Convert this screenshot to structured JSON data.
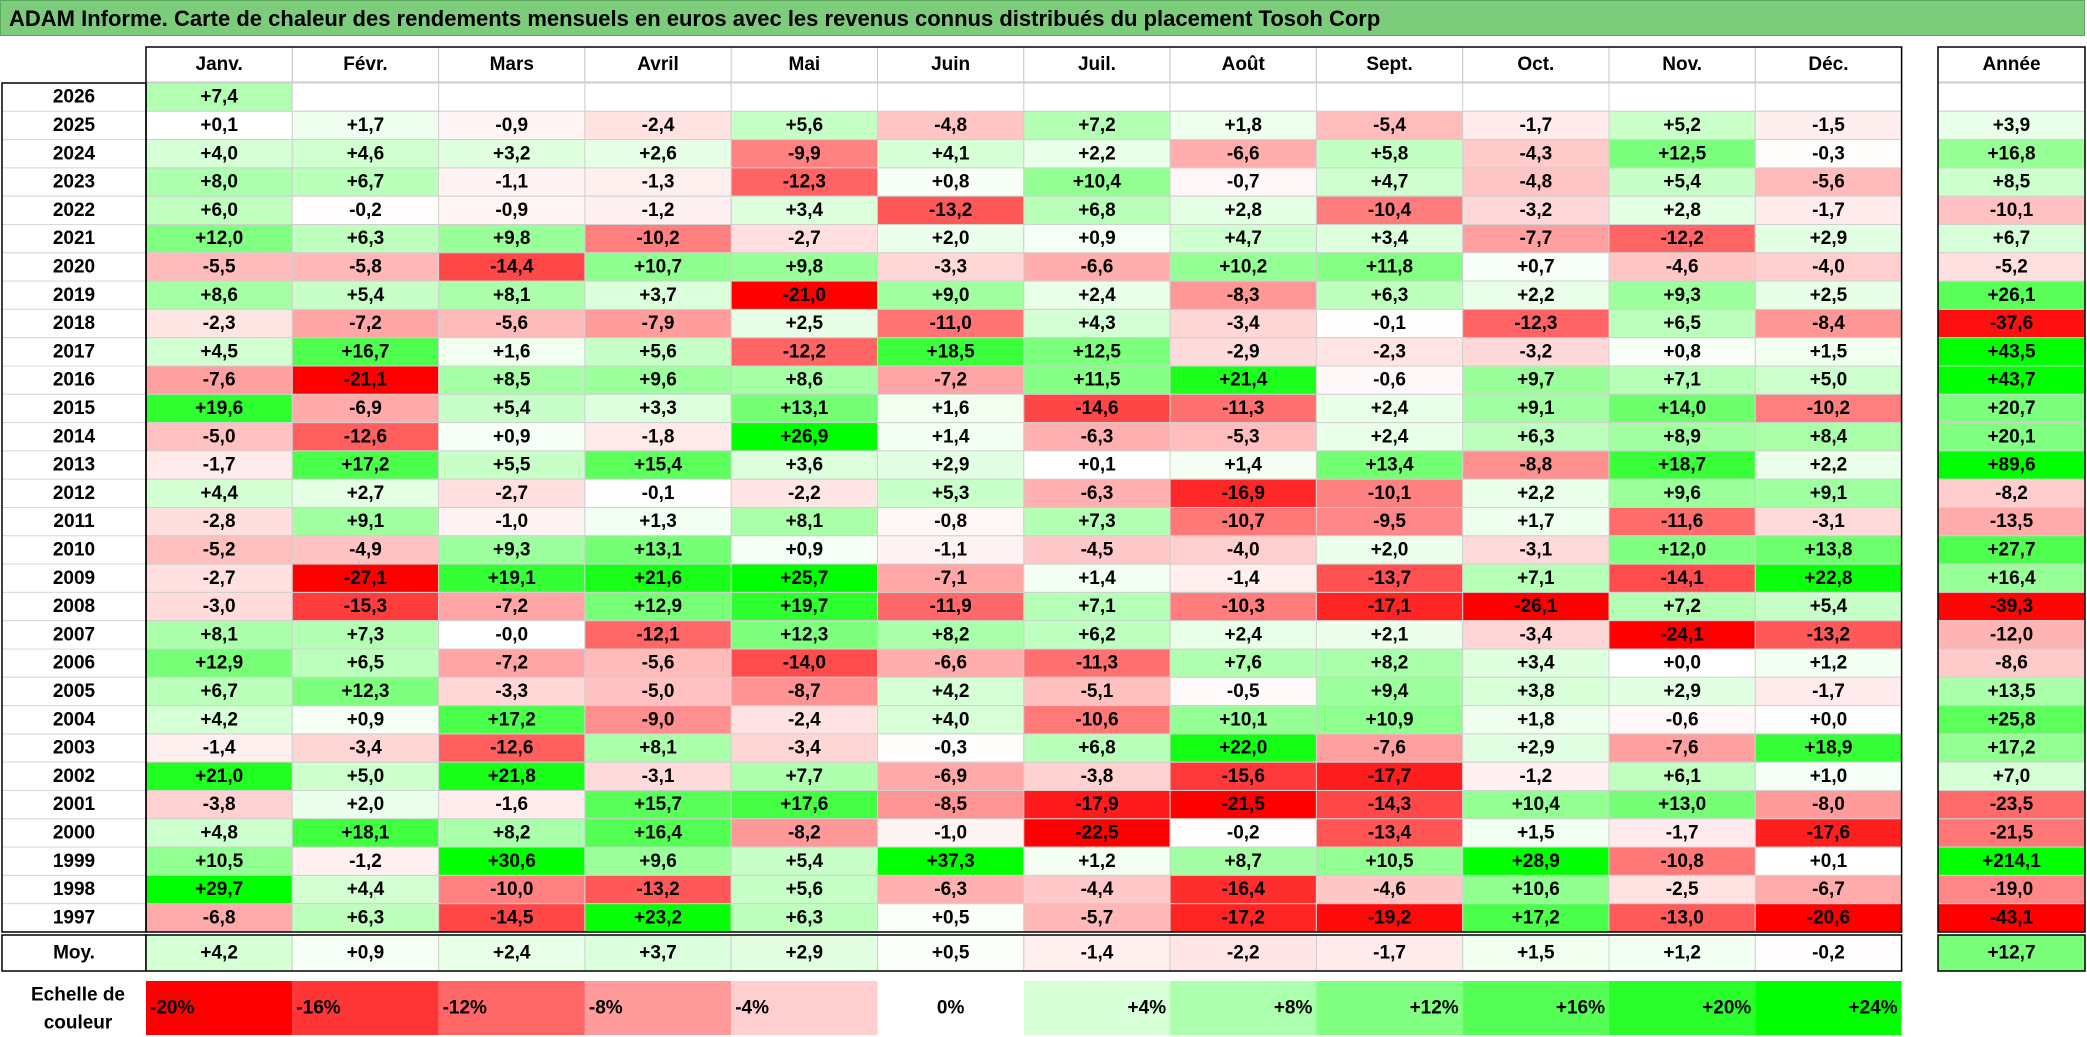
{
  "title": "ADAM Informe. Carte de chaleur des rendements mensuels en euros avec les revenus connus distribués du placement Tosoh Corp",
  "chart_data": {
    "type": "heatmap",
    "months": [
      "Janv.",
      "Févr.",
      "Mars",
      "Avril",
      "Mai",
      "Juin",
      "Juil.",
      "Août",
      "Sept.",
      "Oct.",
      "Nov.",
      "Déc."
    ],
    "year_header": "Année",
    "rows": [
      {
        "year": "2026",
        "values": [
          "+7,4",
          "",
          "",
          "",
          "",
          "",
          "",
          "",
          "",
          "",
          "",
          ""
        ],
        "annual": ""
      },
      {
        "year": "2025",
        "values": [
          "+0,1",
          "+1,7",
          "-0,9",
          "-2,4",
          "+5,6",
          "-4,8",
          "+7,2",
          "+1,8",
          "-5,4",
          "-1,7",
          "+5,2",
          "-1,5"
        ],
        "annual": "+3,9"
      },
      {
        "year": "2024",
        "values": [
          "+4,0",
          "+4,6",
          "+3,2",
          "+2,6",
          "-9,9",
          "+4,1",
          "+2,2",
          "-6,6",
          "+5,8",
          "-4,3",
          "+12,5",
          "-0,3"
        ],
        "annual": "+16,8"
      },
      {
        "year": "2023",
        "values": [
          "+8,0",
          "+6,7",
          "-1,1",
          "-1,3",
          "-12,3",
          "+0,8",
          "+10,4",
          "-0,7",
          "+4,7",
          "-4,8",
          "+5,4",
          "-5,6"
        ],
        "annual": "+8,5"
      },
      {
        "year": "2022",
        "values": [
          "+6,0",
          "-0,2",
          "-0,9",
          "-1,2",
          "+3,4",
          "-13,2",
          "+6,8",
          "+2,8",
          "-10,4",
          "-3,2",
          "+2,8",
          "-1,7"
        ],
        "annual": "-10,1"
      },
      {
        "year": "2021",
        "values": [
          "+12,0",
          "+6,3",
          "+9,8",
          "-10,2",
          "-2,7",
          "+2,0",
          "+0,9",
          "+4,7",
          "+3,4",
          "-7,7",
          "-12,2",
          "+2,9"
        ],
        "annual": "+6,7"
      },
      {
        "year": "2020",
        "values": [
          "-5,5",
          "-5,8",
          "-14,4",
          "+10,7",
          "+9,8",
          "-3,3",
          "-6,6",
          "+10,2",
          "+11,8",
          "+0,7",
          "-4,6",
          "-4,0"
        ],
        "annual": "-5,2"
      },
      {
        "year": "2019",
        "values": [
          "+8,6",
          "+5,4",
          "+8,1",
          "+3,7",
          "-21,0",
          "+9,0",
          "+2,4",
          "-8,3",
          "+6,3",
          "+2,2",
          "+9,3",
          "+2,5"
        ],
        "annual": "+26,1"
      },
      {
        "year": "2018",
        "values": [
          "-2,3",
          "-7,2",
          "-5,6",
          "-7,9",
          "+2,5",
          "-11,0",
          "+4,3",
          "-3,4",
          "-0,1",
          "-12,3",
          "+6,5",
          "-8,4"
        ],
        "annual": "-37,6"
      },
      {
        "year": "2017",
        "values": [
          "+4,5",
          "+16,7",
          "+1,6",
          "+5,6",
          "-12,2",
          "+18,5",
          "+12,5",
          "-2,9",
          "-2,3",
          "-3,2",
          "+0,8",
          "+1,5"
        ],
        "annual": "+43,5"
      },
      {
        "year": "2016",
        "values": [
          "-7,6",
          "-21,1",
          "+8,5",
          "+9,6",
          "+8,6",
          "-7,2",
          "+11,5",
          "+21,4",
          "-0,6",
          "+9,7",
          "+7,1",
          "+5,0"
        ],
        "annual": "+43,7"
      },
      {
        "year": "2015",
        "values": [
          "+19,6",
          "-6,9",
          "+5,4",
          "+3,3",
          "+13,1",
          "+1,6",
          "-14,6",
          "-11,3",
          "+2,4",
          "+9,1",
          "+14,0",
          "-10,2"
        ],
        "annual": "+20,7"
      },
      {
        "year": "2014",
        "values": [
          "-5,0",
          "-12,6",
          "+0,9",
          "-1,8",
          "+26,9",
          "+1,4",
          "-6,3",
          "-5,3",
          "+2,4",
          "+6,3",
          "+8,9",
          "+8,4"
        ],
        "annual": "+20,1"
      },
      {
        "year": "2013",
        "values": [
          "-1,7",
          "+17,2",
          "+5,5",
          "+15,4",
          "+3,6",
          "+2,9",
          "+0,1",
          "+1,4",
          "+13,4",
          "-8,8",
          "+18,7",
          "+2,2"
        ],
        "annual": "+89,6"
      },
      {
        "year": "2012",
        "values": [
          "+4,4",
          "+2,7",
          "-2,7",
          "-0,1",
          "-2,2",
          "+5,3",
          "-6,3",
          "-16,9",
          "-10,1",
          "+2,2",
          "+9,6",
          "+9,1"
        ],
        "annual": "-8,2"
      },
      {
        "year": "2011",
        "values": [
          "-2,8",
          "+9,1",
          "-1,0",
          "+1,3",
          "+8,1",
          "-0,8",
          "+7,3",
          "-10,7",
          "-9,5",
          "+1,7",
          "-11,6",
          "-3,1"
        ],
        "annual": "-13,5"
      },
      {
        "year": "2010",
        "values": [
          "-5,2",
          "-4,9",
          "+9,3",
          "+13,1",
          "+0,9",
          "-1,1",
          "-4,5",
          "-4,0",
          "+2,0",
          "-3,1",
          "+12,0",
          "+13,8"
        ],
        "annual": "+27,7"
      },
      {
        "year": "2009",
        "values": [
          "-2,7",
          "-27,1",
          "+19,1",
          "+21,6",
          "+25,7",
          "-7,1",
          "+1,4",
          "-1,4",
          "-13,7",
          "+7,1",
          "-14,1",
          "+22,8"
        ],
        "annual": "+16,4"
      },
      {
        "year": "2008",
        "values": [
          "-3,0",
          "-15,3",
          "-7,2",
          "+12,9",
          "+19,7",
          "-11,9",
          "+7,1",
          "-10,3",
          "-17,1",
          "-26,1",
          "+7,2",
          "+5,4"
        ],
        "annual": "-39,3"
      },
      {
        "year": "2007",
        "values": [
          "+8,1",
          "+7,3",
          "-0,0",
          "-12,1",
          "+12,3",
          "+8,2",
          "+6,2",
          "+2,4",
          "+2,1",
          "-3,4",
          "-24,1",
          "-13,2"
        ],
        "annual": "-12,0"
      },
      {
        "year": "2006",
        "values": [
          "+12,9",
          "+6,5",
          "-7,2",
          "-5,6",
          "-14,0",
          "-6,6",
          "-11,3",
          "+7,6",
          "+8,2",
          "+3,4",
          "+0,0",
          "+1,2"
        ],
        "annual": "-8,6"
      },
      {
        "year": "2005",
        "values": [
          "+6,7",
          "+12,3",
          "-3,3",
          "-5,0",
          "-8,7",
          "+4,2",
          "-5,1",
          "-0,5",
          "+9,4",
          "+3,8",
          "+2,9",
          "-1,7"
        ],
        "annual": "+13,5"
      },
      {
        "year": "2004",
        "values": [
          "+4,2",
          "+0,9",
          "+17,2",
          "-9,0",
          "-2,4",
          "+4,0",
          "-10,6",
          "+10,1",
          "+10,9",
          "+1,8",
          "-0,6",
          "+0,0"
        ],
        "annual": "+25,8"
      },
      {
        "year": "2003",
        "values": [
          "-1,4",
          "-3,4",
          "-12,6",
          "+8,1",
          "-3,4",
          "-0,3",
          "+6,8",
          "+22,0",
          "-7,6",
          "+2,9",
          "-7,6",
          "+18,9"
        ],
        "annual": "+17,2"
      },
      {
        "year": "2002",
        "values": [
          "+21,0",
          "+5,0",
          "+21,8",
          "-3,1",
          "+7,7",
          "-6,9",
          "-3,8",
          "-15,6",
          "-17,7",
          "-1,2",
          "+6,1",
          "+1,0"
        ],
        "annual": "+7,0"
      },
      {
        "year": "2001",
        "values": [
          "-3,8",
          "+2,0",
          "-1,6",
          "+15,7",
          "+17,6",
          "-8,5",
          "-17,9",
          "-21,5",
          "-14,3",
          "+10,4",
          "+13,0",
          "-8,0"
        ],
        "annual": "-23,5"
      },
      {
        "year": "2000",
        "values": [
          "+4,8",
          "+18,1",
          "+8,2",
          "+16,4",
          "-8,2",
          "-1,0",
          "-22,5",
          "-0,2",
          "-13,4",
          "+1,5",
          "-1,7",
          "-17,6"
        ],
        "annual": "-21,5"
      },
      {
        "year": "1999",
        "values": [
          "+10,5",
          "-1,2",
          "+30,6",
          "+9,6",
          "+5,4",
          "+37,3",
          "+1,2",
          "+8,7",
          "+10,5",
          "+28,9",
          "-10,8",
          "+0,1"
        ],
        "annual": "+214,1"
      },
      {
        "year": "1998",
        "values": [
          "+29,7",
          "+4,4",
          "-10,0",
          "-13,2",
          "+5,6",
          "-6,3",
          "-4,4",
          "-16,4",
          "-4,6",
          "+10,6",
          "-2,5",
          "-6,7"
        ],
        "annual": "-19,0"
      },
      {
        "year": "1997",
        "values": [
          "-6,8",
          "+6,3",
          "-14,5",
          "+23,2",
          "+6,3",
          "+0,5",
          "-5,7",
          "-17,2",
          "-19,2",
          "+17,2",
          "-13,0",
          "-20,6"
        ],
        "annual": "-43,1"
      }
    ],
    "average": {
      "label": "Moy.",
      "values": [
        "+4,2",
        "+0,9",
        "+2,4",
        "+3,7",
        "+2,9",
        "+0,5",
        "-1,4",
        "-2,2",
        "-1,7",
        "+1,5",
        "+1,2",
        "-0,2"
      ],
      "annual": "+12,7"
    },
    "scale": {
      "label_line1": "Echelle de",
      "label_line2": "couleur",
      "steps": [
        "-20%",
        "-16%",
        "-12%",
        "-8%",
        "-4%",
        "0%",
        "+4%",
        "+8%",
        "+12%",
        "+16%",
        "+20%",
        "+24%"
      ]
    }
  }
}
